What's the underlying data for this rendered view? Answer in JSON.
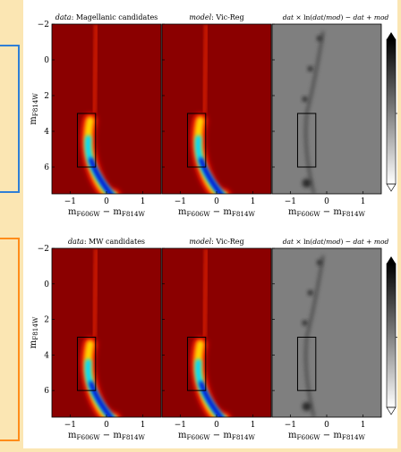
{
  "colors": {
    "page_bg": "#fbe6b3",
    "bracket_blue": "#2f7fd6",
    "bracket_orange": "#ff8c1a",
    "heat_bg": "#8b0000"
  },
  "chart_data": [
    {
      "type": "heatmap",
      "row": 0,
      "panels": [
        {
          "title_prefix": "data",
          "title_value": ": Magellanic candidates",
          "mode": "heat"
        },
        {
          "title_prefix": "model",
          "title_value": ": Vic-Reg",
          "mode": "heat"
        },
        {
          "title": "dat × ln(dat/mod) − dat + mod",
          "mode": "resid"
        }
      ],
      "xlabel": "mF606W − mF814W",
      "ylabel": "mF814W",
      "xlim": [
        -1.5,
        1.5
      ],
      "ylim": [
        7.5,
        -2
      ],
      "xticks": [
        -1,
        0,
        1
      ],
      "yticks": [
        -2,
        0,
        2,
        4,
        6
      ],
      "box": {
        "x": [
          -0.8,
          -0.3
        ],
        "y": [
          3,
          6
        ]
      },
      "colormap": [
        "darkblue",
        "blue",
        "cyan",
        "yellow",
        "red",
        "darkred"
      ]
    },
    {
      "type": "heatmap",
      "row": 1,
      "panels": [
        {
          "title_prefix": "data",
          "title_value": ": MW candidates",
          "mode": "heat"
        },
        {
          "title_prefix": "model",
          "title_value": ": Vic-Reg",
          "mode": "heat"
        },
        {
          "title": "dat × ln(dat/mod) − dat + mod",
          "mode": "resid"
        }
      ],
      "xlabel": "mF606W − mF814W",
      "ylabel": "mF814W",
      "xlim": [
        -1.5,
        1.5
      ],
      "ylim": [
        7.5,
        -2
      ],
      "xticks": [
        -1,
        0,
        1
      ],
      "yticks": [
        -2,
        0,
        2,
        4,
        6
      ],
      "box": {
        "x": [
          -0.8,
          -0.3
        ],
        "y": [
          3,
          6
        ]
      },
      "colormap": [
        "darkblue",
        "blue",
        "cyan",
        "yellow",
        "red",
        "darkred"
      ]
    }
  ]
}
